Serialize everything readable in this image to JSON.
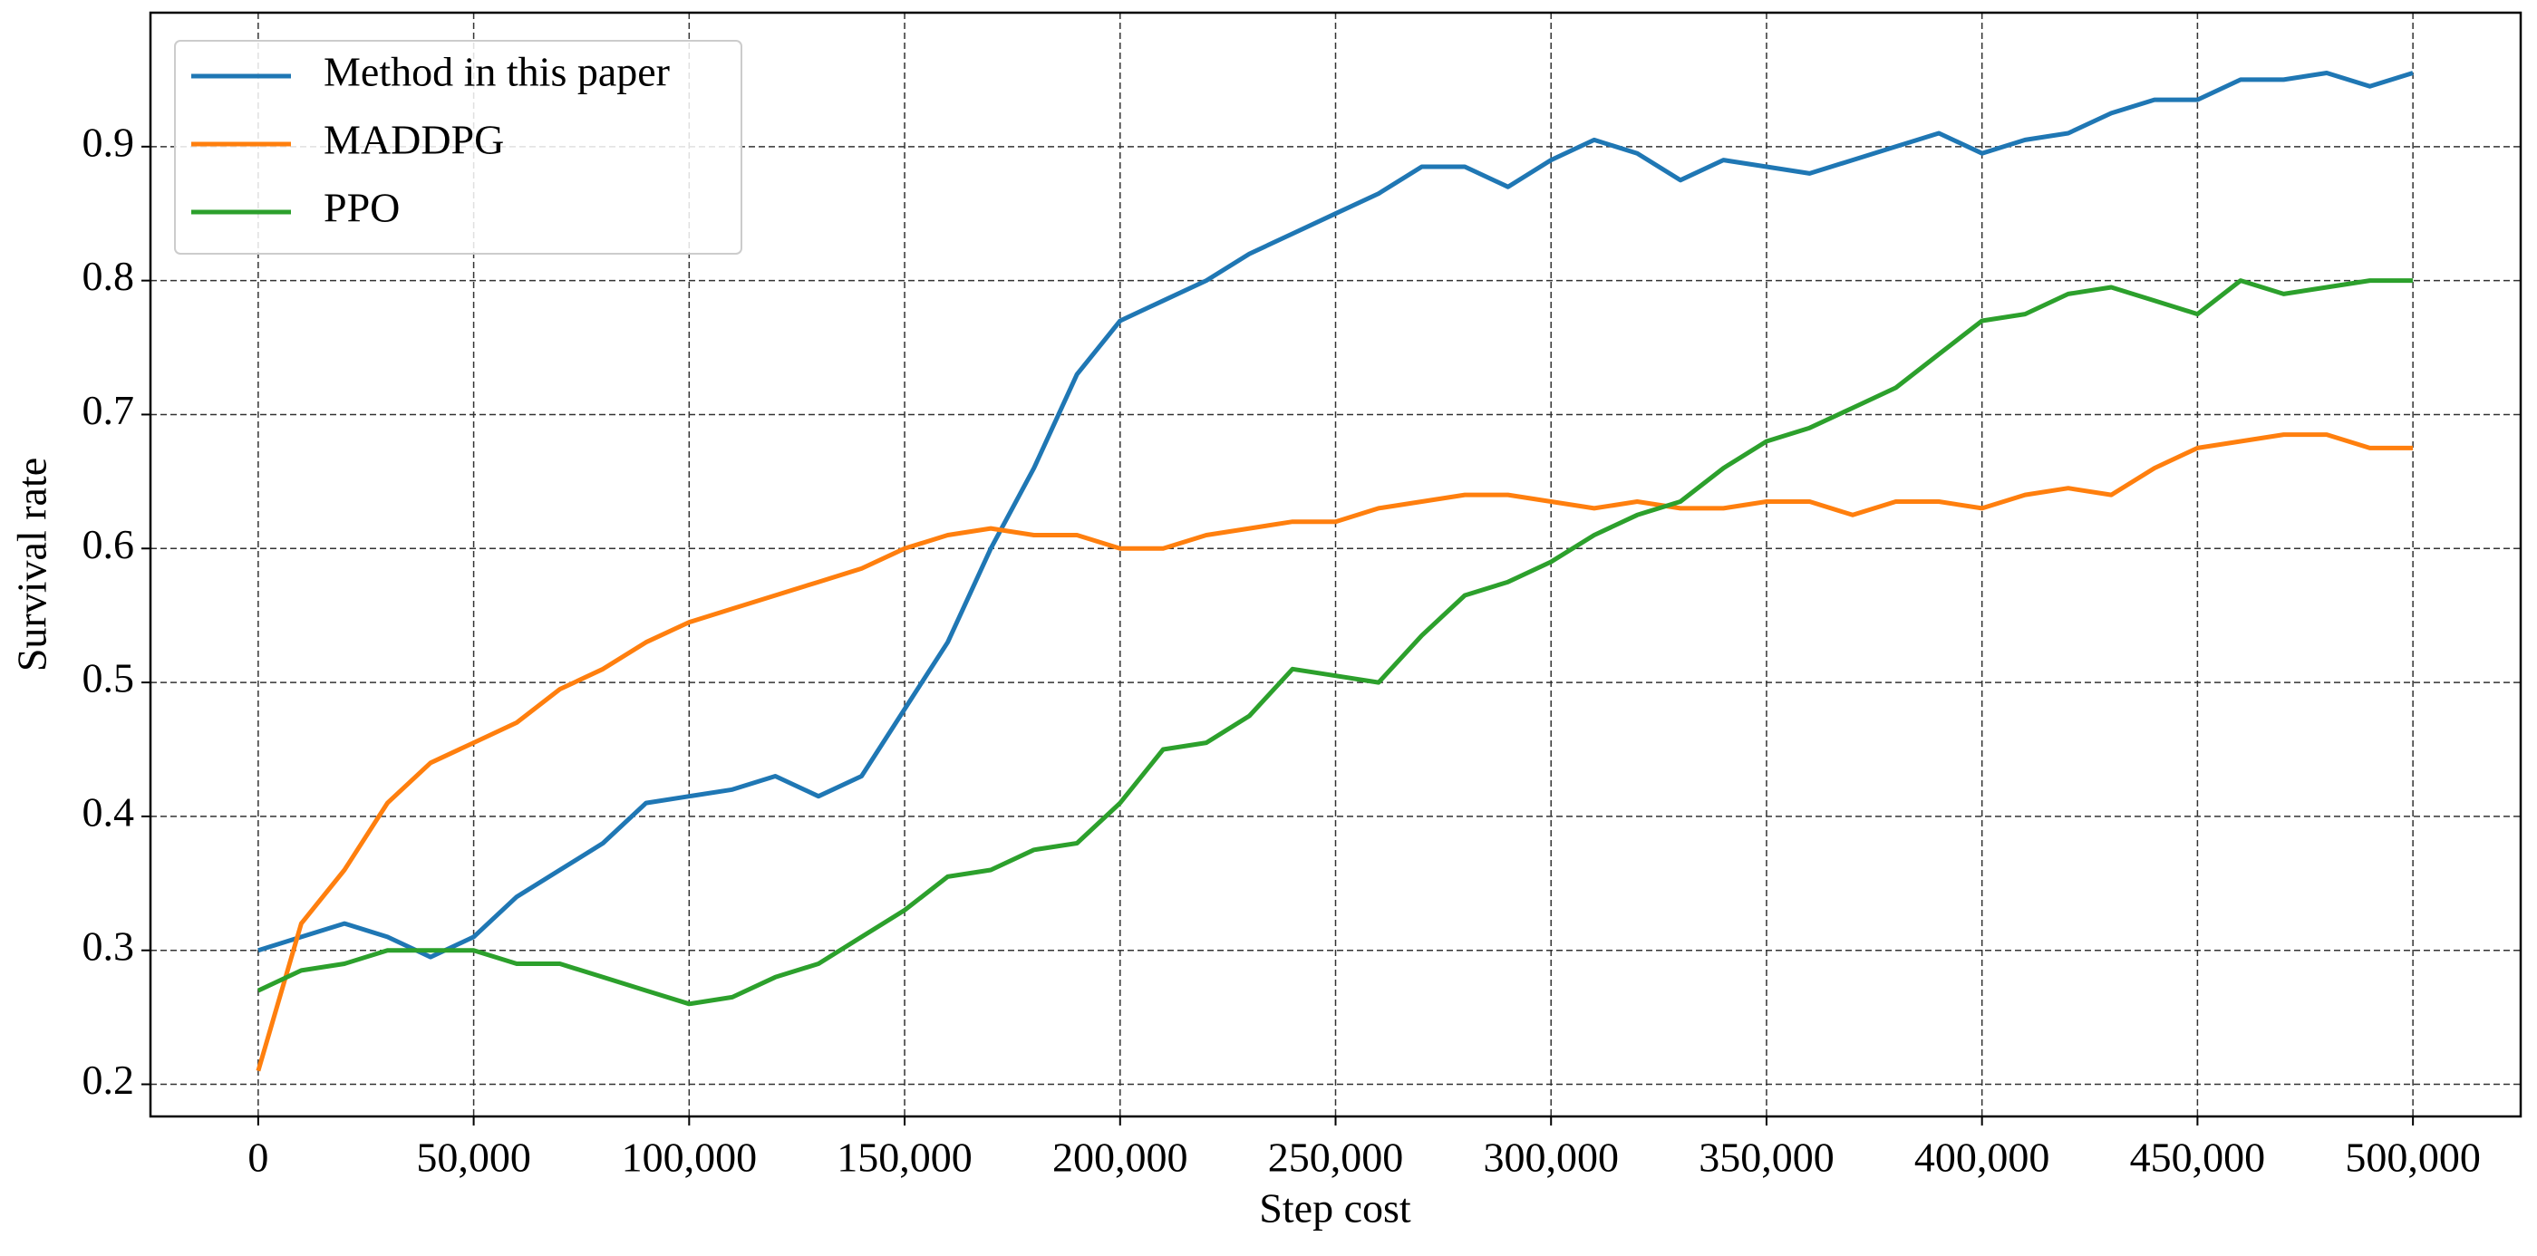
{
  "chart_data": {
    "type": "line",
    "x_label": "Step cost",
    "y_label": "Survival rate",
    "x": [
      0,
      10000,
      20000,
      30000,
      40000,
      50000,
      60000,
      70000,
      80000,
      90000,
      100000,
      110000,
      120000,
      130000,
      140000,
      150000,
      160000,
      170000,
      180000,
      190000,
      200000,
      210000,
      220000,
      230000,
      240000,
      250000,
      260000,
      270000,
      280000,
      290000,
      300000,
      310000,
      320000,
      330000,
      340000,
      350000,
      360000,
      370000,
      380000,
      390000,
      400000,
      410000,
      420000,
      430000,
      440000,
      450000,
      460000,
      470000,
      480000,
      490000,
      500000
    ],
    "series": [
      {
        "name": "Method in this paper",
        "color": "#1f77b4",
        "values": [
          0.3,
          0.31,
          0.32,
          0.31,
          0.295,
          0.31,
          0.34,
          0.36,
          0.38,
          0.41,
          0.415,
          0.42,
          0.43,
          0.415,
          0.43,
          0.48,
          0.53,
          0.6,
          0.66,
          0.73,
          0.77,
          0.785,
          0.8,
          0.82,
          0.835,
          0.85,
          0.865,
          0.885,
          0.885,
          0.87,
          0.89,
          0.905,
          0.895,
          0.875,
          0.89,
          0.885,
          0.88,
          0.89,
          0.9,
          0.91,
          0.895,
          0.905,
          0.91,
          0.925,
          0.935,
          0.935,
          0.95,
          0.95,
          0.955,
          0.945,
          0.955
        ]
      },
      {
        "name": "MADDPG",
        "color": "#ff7f0e",
        "values": [
          0.21,
          0.32,
          0.36,
          0.41,
          0.44,
          0.455,
          0.47,
          0.495,
          0.51,
          0.53,
          0.545,
          0.555,
          0.565,
          0.575,
          0.585,
          0.6,
          0.61,
          0.615,
          0.61,
          0.61,
          0.6,
          0.6,
          0.61,
          0.615,
          0.62,
          0.62,
          0.63,
          0.635,
          0.64,
          0.64,
          0.635,
          0.63,
          0.635,
          0.63,
          0.63,
          0.635,
          0.635,
          0.625,
          0.635,
          0.635,
          0.63,
          0.64,
          0.645,
          0.64,
          0.66,
          0.675,
          0.68,
          0.685,
          0.685,
          0.675,
          0.675
        ]
      },
      {
        "name": "PPO",
        "color": "#2ca02c",
        "values": [
          0.27,
          0.285,
          0.29,
          0.3,
          0.3,
          0.3,
          0.29,
          0.29,
          0.28,
          0.27,
          0.26,
          0.265,
          0.28,
          0.29,
          0.31,
          0.33,
          0.355,
          0.36,
          0.375,
          0.38,
          0.41,
          0.45,
          0.455,
          0.475,
          0.51,
          0.505,
          0.5,
          0.535,
          0.565,
          0.575,
          0.59,
          0.61,
          0.625,
          0.635,
          0.66,
          0.68,
          0.69,
          0.705,
          0.72,
          0.745,
          0.77,
          0.775,
          0.79,
          0.795,
          0.785,
          0.775,
          0.8,
          0.79,
          0.795,
          0.8,
          0.8
        ]
      }
    ],
    "xlim": [
      -25000,
      525000
    ],
    "ylim": [
      0.176,
      1.0
    ],
    "xticks": [
      0,
      {
        "value": 50000,
        "label": "50,000"
      },
      {
        "value": 100000,
        "label": "100,000"
      },
      {
        "value": 150000,
        "label": "150,000"
      },
      {
        "value": 200000,
        "label": "200,000"
      },
      {
        "value": 250000,
        "label": "250,000"
      },
      {
        "value": 300000,
        "label": "300,000"
      },
      {
        "value": 350000,
        "label": "350,000"
      },
      {
        "value": 400000,
        "label": "400,000"
      },
      {
        "value": 450000,
        "label": "450,000"
      },
      {
        "value": 500000,
        "label": "500,000"
      }
    ],
    "yticks": [
      0.2,
      0.3,
      0.4,
      0.5,
      0.6,
      0.7,
      0.8,
      0.9
    ],
    "grid": true,
    "legend": "upper-left"
  }
}
